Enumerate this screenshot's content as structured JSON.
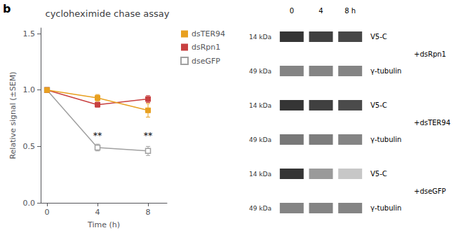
{
  "chart_data": [
    {
      "type": "line",
      "title": "cycloheximide chase assay",
      "panel_label": "b",
      "xlabel": "Time (h)",
      "ylabel": "Relative signal (±SEM)",
      "x": [
        0,
        4,
        8
      ],
      "series": [
        {
          "name": "dsTER94",
          "color": "#E8A020",
          "marker": "square",
          "values": [
            1.0,
            0.93,
            0.82
          ],
          "errors": [
            0.02,
            0.03,
            0.06
          ]
        },
        {
          "name": "dsRpn1",
          "color": "#C84040",
          "marker": "square",
          "values": [
            1.0,
            0.87,
            0.92
          ],
          "errors": [
            0.02,
            0.02,
            0.03
          ]
        },
        {
          "name": "dseGFP",
          "color": "#A0A0A0",
          "marker": "open_square",
          "values": [
            1.0,
            0.49,
            0.46
          ],
          "errors": [
            0.01,
            0.03,
            0.04
          ]
        }
      ],
      "annotations": [
        {
          "text": "**",
          "x": 4,
          "y": 0.555
        },
        {
          "text": "**",
          "x": 8,
          "y": 0.555
        }
      ],
      "xlim": [
        -0.5,
        9.5
      ],
      "xticks": [
        0,
        4,
        8
      ],
      "ylim": [
        0.0,
        1.55
      ],
      "yticks": [
        {
          "value": 0.0,
          "label": "0.0"
        },
        0.5,
        {
          "value": 1.0,
          "label": "1.0"
        },
        1.5
      ],
      "grid": false,
      "legend": "right"
    },
    {
      "type": "heatmap",
      "categories": [
        "0",
        "4",
        "8 h"
      ],
      "series": [
        {
          "name": "+dsRpn1",
          "rows": [
            {
              "name": "V5-C",
              "size_label": "14 kDa",
              "values": [
                0.9,
                0.85,
                0.82
              ]
            },
            {
              "name": "γ-tubulin",
              "size_label": "49 kDa",
              "values": [
                0.55,
                0.55,
                0.55
              ]
            }
          ]
        },
        {
          "name": "+dsTER94",
          "rows": [
            {
              "name": "V5-C",
              "size_label": "14 kDa",
              "values": [
                0.9,
                0.85,
                0.8
              ]
            },
            {
              "name": "γ-tubulin",
              "size_label": "49 kDa",
              "values": [
                0.6,
                0.58,
                0.55
              ]
            }
          ]
        },
        {
          "name": "+dseGFP",
          "rows": [
            {
              "name": "V5-C",
              "size_label": "14 kDa",
              "values": [
                0.9,
                0.45,
                0.25
              ]
            },
            {
              "name": "γ-tubulin",
              "size_label": "49 kDa",
              "values": [
                0.55,
                0.55,
                0.55
              ]
            }
          ]
        }
      ]
    }
  ]
}
